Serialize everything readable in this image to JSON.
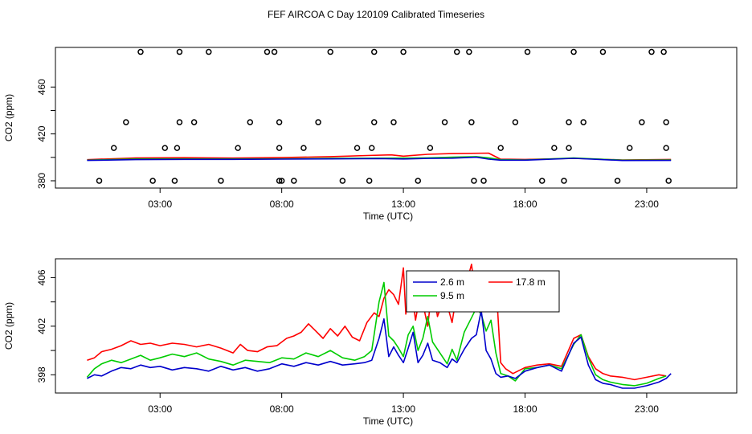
{
  "title": "FEF AIRCOA C  Day 120109  Calibrated Timeseries",
  "chart_data": [
    {
      "type": "line",
      "xlabel": "Time (UTC)",
      "ylabel": "CO2 (ppm)",
      "xlim": [
        -1.3,
        26.7
      ],
      "ylim": [
        373.8,
        493.8
      ],
      "x_ticks": [
        3,
        8,
        13,
        18,
        23
      ],
      "x_tick_labels": [
        "03:00",
        "08:00",
        "13:00",
        "18:00",
        "23:00"
      ],
      "y_ticks": [
        380,
        420,
        460
      ],
      "y_tick_labels": [
        "380",
        "420",
        "460"
      ],
      "y_minor_ticks": [
        400,
        440
      ],
      "series": [
        {
          "color": "#ff0000",
          "x": [
            0.0,
            2.0,
            4.0,
            6.0,
            8.0,
            10.0,
            11.5,
            12.5,
            13.0,
            14.0,
            15.0,
            16.5,
            17.0,
            18.0,
            20.0,
            22.0,
            24.0
          ],
          "values": [
            398,
            399.5,
            399.7,
            399.4,
            399.8,
            400.6,
            401.6,
            402.1,
            401,
            402.6,
            403.2,
            403.6,
            398.4,
            398.2,
            399.2,
            397.8,
            398.2
          ]
        },
        {
          "color": "#00cc00",
          "x": [
            0.0,
            2.0,
            4.0,
            6.0,
            8.0,
            10.0,
            12.0,
            13.0,
            14.0,
            15.0,
            16.0,
            16.5,
            17.0,
            18.0,
            20.0,
            22.0,
            24.0
          ],
          "values": [
            397.6,
            398.6,
            398.7,
            398.6,
            398.7,
            399.1,
            399.3,
            399.4,
            399.6,
            400.1,
            400.6,
            399.6,
            398,
            397.8,
            399.5,
            397.6,
            397.8
          ]
        },
        {
          "color": "#0000cc",
          "x": [
            0.0,
            2.0,
            4.0,
            6.0,
            8.0,
            10.0,
            12.0,
            13.0,
            14.0,
            15.0,
            16.0,
            16.5,
            17.0,
            18.0,
            20.0,
            22.0,
            24.0
          ],
          "values": [
            397.4,
            398.1,
            398.3,
            398.3,
            398.5,
            398.7,
            399,
            398.6,
            399.1,
            399.3,
            400.1,
            398.5,
            397.6,
            397.6,
            399.2,
            397.3,
            397.4
          ]
        }
      ],
      "outlier_points": {
        "marker": "circle",
        "x": [
          0.5,
          1.1,
          1.6,
          2.2,
          2.7,
          3.2,
          3.6,
          3.7,
          3.8,
          3.8,
          4.4,
          5.0,
          5.5,
          6.2,
          6.7,
          7.4,
          7.7,
          7.9,
          7.9,
          7.9,
          8.0,
          8.5,
          8.9,
          9.5,
          10.0,
          10.5,
          11.1,
          11.6,
          11.7,
          11.8,
          11.8,
          12.6,
          13.0,
          13.6,
          14.1,
          14.7,
          15.2,
          15.7,
          15.8,
          15.9,
          16.3,
          17.0,
          17.6,
          18.1,
          18.7,
          19.2,
          19.6,
          19.8,
          19.8,
          20.0,
          20.4,
          21.2,
          21.8,
          22.3,
          22.8,
          23.2,
          23.7,
          23.8,
          23.8,
          23.9
        ],
        "values": [
          380,
          408,
          430,
          490,
          380,
          408,
          380,
          408,
          490,
          430,
          430,
          490,
          380,
          408,
          430,
          490,
          490,
          430,
          408,
          380,
          380,
          380,
          408,
          430,
          490,
          380,
          408,
          380,
          408,
          430,
          490,
          430,
          490,
          380,
          408,
          430,
          490,
          490,
          430,
          380,
          380,
          408,
          430,
          490,
          380,
          408,
          380,
          408,
          430,
          490,
          430,
          490,
          380,
          408,
          430,
          490,
          490,
          430,
          408,
          380
        ]
      }
    },
    {
      "type": "line",
      "xlabel": "Time (UTC)",
      "ylabel": "CO2 (ppm)",
      "xlim": [
        -1.3,
        26.7
      ],
      "ylim": [
        396.5,
        407.55
      ],
      "x_ticks": [
        3,
        8,
        13,
        18,
        23
      ],
      "x_tick_labels": [
        "03:00",
        "08:00",
        "13:00",
        "18:00",
        "23:00"
      ],
      "y_ticks": [
        398,
        402,
        406
      ],
      "y_tick_labels": [
        "398",
        "402",
        "406"
      ],
      "y_minor_ticks": [
        400,
        404
      ],
      "legend": {
        "placement": "top-center",
        "entries": [
          {
            "label": "2.6 m",
            "color": "#0000cc"
          },
          {
            "label": "9.5 m",
            "color": "#00cc00"
          },
          {
            "label": "17.8 m",
            "color": "#ff0000"
          }
        ]
      },
      "series": [
        {
          "name": "17.8 m",
          "color": "#ff0000",
          "x": [
            0.0,
            0.3,
            0.6,
            1.0,
            1.4,
            1.8,
            2.2,
            2.6,
            3.0,
            3.5,
            4.0,
            4.5,
            5.0,
            5.5,
            6.0,
            6.3,
            6.6,
            7.0,
            7.4,
            7.8,
            8.2,
            8.5,
            8.8,
            9.1,
            9.4,
            9.7,
            10.0,
            10.3,
            10.6,
            10.9,
            11.2,
            11.5,
            11.8,
            12.0,
            12.2,
            12.4,
            12.6,
            12.8,
            13.0,
            13.1,
            13.3,
            13.5,
            13.7,
            14.0,
            14.2,
            14.4,
            14.7,
            15.0,
            15.2,
            15.4,
            15.6,
            15.8,
            16.0,
            16.3,
            16.6,
            16.8,
            17.0,
            17.2,
            17.5,
            18.0,
            18.5,
            19.0,
            19.5,
            20.0,
            20.3,
            20.6,
            20.9,
            21.2,
            21.5,
            22.0,
            22.5,
            23.0,
            23.5,
            23.8
          ],
          "values": [
            399.2,
            399.4,
            399.9,
            400.1,
            400.4,
            400.8,
            400.5,
            400.6,
            400.4,
            400.6,
            400.5,
            400.3,
            400.5,
            400.2,
            399.8,
            400.5,
            400.0,
            399.9,
            400.3,
            400.4,
            401.0,
            401.2,
            401.5,
            402.2,
            401.6,
            401.0,
            401.8,
            401.2,
            402.0,
            401.1,
            400.8,
            402.3,
            403.1,
            402.8,
            404.3,
            405.0,
            404.6,
            403.8,
            406.8,
            403.0,
            405.5,
            402.5,
            404.8,
            402.0,
            405.5,
            402.8,
            404.5,
            402.3,
            404.8,
            403.5,
            405.6,
            407.1,
            404.0,
            405.2,
            405.5,
            405.8,
            399.0,
            398.5,
            398.1,
            398.6,
            398.8,
            398.9,
            398.7,
            401.0,
            401.3,
            399.5,
            398.5,
            398.1,
            397.9,
            397.8,
            397.6,
            397.8,
            398.0,
            397.9
          ]
        },
        {
          "name": "9.5 m",
          "color": "#00cc00",
          "x": [
            0.0,
            0.3,
            0.6,
            1.0,
            1.4,
            1.8,
            2.2,
            2.6,
            3.0,
            3.5,
            4.0,
            4.5,
            5.0,
            5.5,
            6.0,
            6.5,
            7.0,
            7.5,
            8.0,
            8.5,
            9.0,
            9.5,
            10.0,
            10.5,
            11.0,
            11.4,
            11.7,
            12.0,
            12.2,
            12.4,
            12.6,
            12.8,
            13.0,
            13.2,
            13.4,
            13.6,
            13.8,
            14.0,
            14.2,
            14.5,
            14.8,
            15.0,
            15.2,
            15.5,
            15.8,
            16.0,
            16.2,
            16.4,
            16.6,
            16.8,
            17.0,
            17.3,
            17.6,
            18.0,
            18.5,
            19.0,
            19.5,
            20.0,
            20.3,
            20.6,
            20.9,
            21.2,
            21.5,
            22.0,
            22.5,
            23.0,
            23.5,
            23.8
          ],
          "values": [
            397.8,
            398.5,
            398.9,
            399.2,
            399.0,
            399.3,
            399.6,
            399.2,
            399.4,
            399.7,
            399.5,
            399.8,
            399.3,
            399.1,
            398.8,
            399.2,
            399.1,
            399.0,
            399.4,
            399.3,
            399.8,
            399.5,
            400.0,
            399.4,
            399.2,
            399.5,
            400.0,
            404.0,
            405.6,
            401.2,
            400.8,
            400.2,
            399.5,
            401.3,
            402.0,
            400.0,
            401.0,
            402.8,
            400.7,
            399.8,
            398.9,
            400.1,
            399.2,
            401.5,
            402.7,
            403.5,
            403.0,
            401.6,
            402.5,
            399.8,
            398.1,
            397.9,
            397.5,
            398.5,
            398.6,
            398.8,
            398.5,
            400.5,
            401.3,
            399.4,
            398.0,
            397.6,
            397.4,
            397.2,
            397.1,
            397.3,
            397.7,
            397.9
          ]
        },
        {
          "name": "2.6 m",
          "color": "#0000cc",
          "x": [
            0.0,
            0.3,
            0.6,
            1.0,
            1.4,
            1.8,
            2.2,
            2.6,
            3.0,
            3.5,
            4.0,
            4.5,
            5.0,
            5.5,
            6.0,
            6.5,
            7.0,
            7.5,
            8.0,
            8.5,
            9.0,
            9.5,
            10.0,
            10.5,
            11.0,
            11.4,
            11.7,
            12.0,
            12.2,
            12.4,
            12.6,
            12.8,
            13.0,
            13.2,
            13.4,
            13.6,
            13.8,
            14.0,
            14.2,
            14.5,
            14.8,
            15.0,
            15.2,
            15.5,
            15.8,
            16.0,
            16.2,
            16.4,
            16.6,
            16.8,
            17.0,
            17.3,
            17.6,
            18.0,
            18.5,
            19.0,
            19.5,
            20.0,
            20.3,
            20.6,
            20.9,
            21.2,
            21.5,
            22.0,
            22.5,
            23.0,
            23.5,
            23.8,
            24.0
          ],
          "values": [
            397.7,
            398.0,
            397.9,
            398.3,
            398.6,
            398.5,
            398.8,
            398.6,
            398.7,
            398.4,
            398.6,
            398.5,
            398.3,
            398.7,
            398.4,
            398.6,
            398.3,
            398.5,
            398.9,
            398.7,
            399.0,
            398.8,
            399.1,
            398.8,
            398.9,
            399.0,
            399.2,
            401.0,
            402.6,
            399.5,
            400.3,
            399.6,
            399.0,
            400.2,
            401.5,
            399.0,
            399.6,
            400.6,
            399.2,
            399.0,
            398.6,
            399.3,
            399.0,
            400.1,
            401.0,
            401.3,
            403.3,
            400.0,
            399.3,
            398.1,
            397.8,
            397.9,
            397.7,
            398.3,
            398.6,
            398.8,
            398.3,
            400.6,
            401.1,
            398.8,
            397.6,
            397.3,
            397.2,
            396.9,
            396.9,
            397.1,
            397.4,
            397.7,
            398.1
          ]
        }
      ]
    }
  ]
}
